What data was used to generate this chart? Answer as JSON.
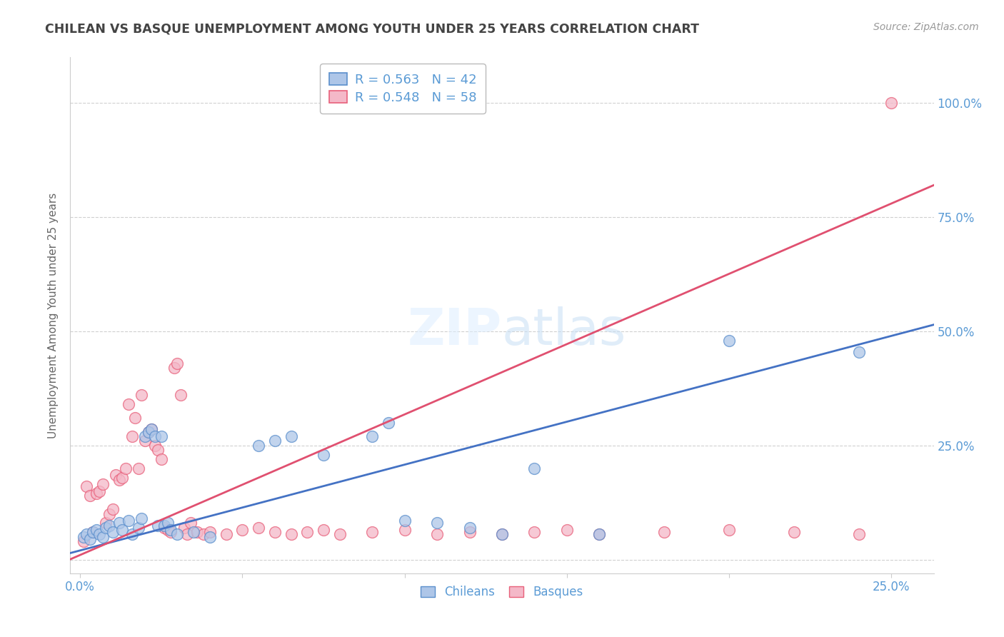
{
  "title": "CHILEAN VS BASQUE UNEMPLOYMENT AMONG YOUTH UNDER 25 YEARS CORRELATION CHART",
  "source": "Source: ZipAtlas.com",
  "ylabel": "Unemployment Among Youth under 25 years",
  "x_ticks": [
    0.0,
    0.05,
    0.1,
    0.15,
    0.2,
    0.25
  ],
  "x_tick_labels": [
    "0.0%",
    "",
    "",
    "",
    "",
    "25.0%"
  ],
  "y_ticks": [
    0.0,
    0.25,
    0.5,
    0.75,
    1.0
  ],
  "y_tick_labels": [
    "",
    "25.0%",
    "50.0%",
    "75.0%",
    "100.0%"
  ],
  "xlim": [
    -0.003,
    0.263
  ],
  "ylim": [
    -0.03,
    1.1
  ],
  "background_color": "#ffffff",
  "grid_color": "#d0d0d0",
  "title_color": "#444444",
  "chilean_color": "#aec6e8",
  "basque_color": "#f4b8c8",
  "chilean_edge_color": "#5b8fcc",
  "basque_edge_color": "#e8607a",
  "chilean_line_color": "#4472c4",
  "basque_line_color": "#e05070",
  "axis_label_color": "#5b9bd5",
  "legend_r_chilean": "R = 0.563",
  "legend_n_chilean": "N = 42",
  "legend_r_basque": "R = 0.548",
  "legend_n_basque": "N = 58",
  "chilean_points": [
    [
      0.001,
      0.05
    ],
    [
      0.002,
      0.055
    ],
    [
      0.003,
      0.045
    ],
    [
      0.004,
      0.06
    ],
    [
      0.005,
      0.065
    ],
    [
      0.006,
      0.055
    ],
    [
      0.007,
      0.05
    ],
    [
      0.008,
      0.07
    ],
    [
      0.009,
      0.075
    ],
    [
      0.01,
      0.06
    ],
    [
      0.012,
      0.08
    ],
    [
      0.013,
      0.065
    ],
    [
      0.015,
      0.085
    ],
    [
      0.016,
      0.055
    ],
    [
      0.018,
      0.07
    ],
    [
      0.019,
      0.09
    ],
    [
      0.02,
      0.27
    ],
    [
      0.021,
      0.28
    ],
    [
      0.022,
      0.285
    ],
    [
      0.023,
      0.27
    ],
    [
      0.024,
      0.075
    ],
    [
      0.025,
      0.27
    ],
    [
      0.026,
      0.075
    ],
    [
      0.027,
      0.08
    ],
    [
      0.028,
      0.065
    ],
    [
      0.03,
      0.055
    ],
    [
      0.035,
      0.06
    ],
    [
      0.04,
      0.05
    ],
    [
      0.055,
      0.25
    ],
    [
      0.06,
      0.26
    ],
    [
      0.065,
      0.27
    ],
    [
      0.075,
      0.23
    ],
    [
      0.09,
      0.27
    ],
    [
      0.095,
      0.3
    ],
    [
      0.1,
      0.085
    ],
    [
      0.11,
      0.08
    ],
    [
      0.12,
      0.07
    ],
    [
      0.13,
      0.055
    ],
    [
      0.14,
      0.2
    ],
    [
      0.16,
      0.055
    ],
    [
      0.2,
      0.48
    ],
    [
      0.24,
      0.455
    ]
  ],
  "basque_points": [
    [
      0.001,
      0.04
    ],
    [
      0.002,
      0.16
    ],
    [
      0.003,
      0.14
    ],
    [
      0.004,
      0.06
    ],
    [
      0.005,
      0.145
    ],
    [
      0.006,
      0.15
    ],
    [
      0.007,
      0.165
    ],
    [
      0.008,
      0.08
    ],
    [
      0.009,
      0.1
    ],
    [
      0.01,
      0.11
    ],
    [
      0.011,
      0.185
    ],
    [
      0.012,
      0.175
    ],
    [
      0.013,
      0.18
    ],
    [
      0.014,
      0.2
    ],
    [
      0.015,
      0.34
    ],
    [
      0.016,
      0.27
    ],
    [
      0.017,
      0.31
    ],
    [
      0.018,
      0.2
    ],
    [
      0.019,
      0.36
    ],
    [
      0.02,
      0.26
    ],
    [
      0.021,
      0.28
    ],
    [
      0.022,
      0.285
    ],
    [
      0.023,
      0.25
    ],
    [
      0.024,
      0.24
    ],
    [
      0.025,
      0.22
    ],
    [
      0.026,
      0.07
    ],
    [
      0.027,
      0.065
    ],
    [
      0.028,
      0.06
    ],
    [
      0.029,
      0.42
    ],
    [
      0.03,
      0.43
    ],
    [
      0.031,
      0.36
    ],
    [
      0.032,
      0.07
    ],
    [
      0.033,
      0.055
    ],
    [
      0.034,
      0.08
    ],
    [
      0.036,
      0.06
    ],
    [
      0.038,
      0.055
    ],
    [
      0.04,
      0.06
    ],
    [
      0.045,
      0.055
    ],
    [
      0.05,
      0.065
    ],
    [
      0.055,
      0.07
    ],
    [
      0.06,
      0.06
    ],
    [
      0.065,
      0.055
    ],
    [
      0.07,
      0.06
    ],
    [
      0.075,
      0.065
    ],
    [
      0.08,
      0.055
    ],
    [
      0.09,
      0.06
    ],
    [
      0.1,
      0.065
    ],
    [
      0.11,
      0.055
    ],
    [
      0.12,
      0.06
    ],
    [
      0.13,
      0.055
    ],
    [
      0.14,
      0.06
    ],
    [
      0.15,
      0.065
    ],
    [
      0.16,
      0.055
    ],
    [
      0.18,
      0.06
    ],
    [
      0.2,
      0.065
    ],
    [
      0.22,
      0.06
    ],
    [
      0.24,
      0.055
    ],
    [
      0.25,
      1.0
    ]
  ],
  "chilean_reg": {
    "slope": 1.88,
    "intercept": 0.02
  },
  "basque_reg": {
    "slope": 3.08,
    "intercept": 0.01
  }
}
